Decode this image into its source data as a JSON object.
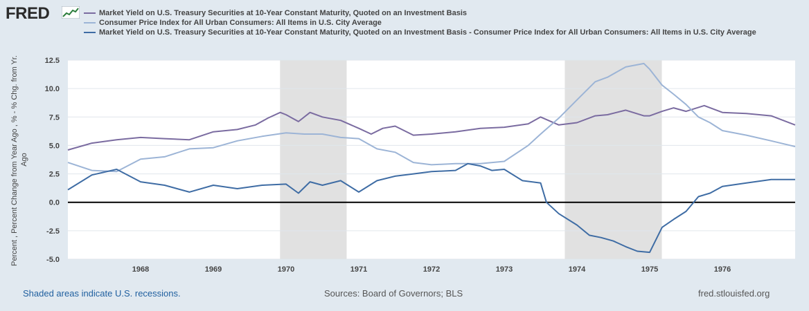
{
  "header": {
    "logo_text": "FRED",
    "logo_icon": "fred-mini-chart-icon"
  },
  "footer": {
    "recession_note": "Shaded areas indicate U.S. recessions.",
    "sources": "Sources: Board of Governors; BLS",
    "site": "fred.stlouisfed.org"
  },
  "colors": {
    "background": "#e1e9f0",
    "plot_bg": "#ffffff",
    "gridline": "#e0e6ec",
    "recession": "#e1e1e1",
    "zero_line": "#000000",
    "series1": "#7a6ba0",
    "series2": "#9cb4d6",
    "series3": "#3e6ca4"
  },
  "chart_data": {
    "type": "line",
    "title": "",
    "xlabel": "",
    "ylabel": "Percent , Percent Change from Year Ago , % - % Chg. from Yr. Ago",
    "x_range": [
      1967.0,
      1977.0
    ],
    "ylim": [
      -5.0,
      12.5
    ],
    "y_ticks": [
      -5.0,
      -2.5,
      0.0,
      2.5,
      5.0,
      7.5,
      10.0,
      12.5
    ],
    "y_tick_labels": [
      "-5.0",
      "-2.5",
      "0.0",
      "2.5",
      "5.0",
      "7.5",
      "10.0",
      "12.5"
    ],
    "x_tick_labels": [
      "1968",
      "1969",
      "1970",
      "1971",
      "1972",
      "1973",
      "1974",
      "1975",
      "1976"
    ],
    "x_tick_values": [
      1968,
      1969,
      1970,
      1971,
      1972,
      1973,
      1974,
      1975,
      1976
    ],
    "zero_line": 0.0,
    "recessions": [
      [
        1969.917,
        1970.833
      ],
      [
        1973.833,
        1975.167
      ]
    ],
    "series": [
      {
        "name": "Market Yield on U.S. Treasury Securities at 10-Year Constant Maturity, Quoted on an Investment Basis",
        "color": "#7a6ba0",
        "x": [
          1967.0,
          1967.33,
          1967.67,
          1968.0,
          1968.33,
          1968.67,
          1969.0,
          1969.33,
          1969.58,
          1969.75,
          1969.92,
          1970.0,
          1970.17,
          1970.33,
          1970.5,
          1970.75,
          1971.0,
          1971.17,
          1971.33,
          1971.5,
          1971.75,
          1972.0,
          1972.33,
          1972.67,
          1973.0,
          1973.33,
          1973.5,
          1973.75,
          1974.0,
          1974.25,
          1974.42,
          1974.67,
          1974.92,
          1975.0,
          1975.17,
          1975.33,
          1975.5,
          1975.75,
          1976.0,
          1976.33,
          1976.67,
          1977.0
        ],
        "values": [
          4.6,
          5.2,
          5.5,
          5.7,
          5.6,
          5.5,
          6.2,
          6.4,
          6.8,
          7.4,
          7.9,
          7.7,
          7.1,
          7.9,
          7.5,
          7.2,
          6.5,
          6.0,
          6.5,
          6.7,
          5.9,
          6.0,
          6.2,
          6.5,
          6.6,
          6.9,
          7.5,
          6.8,
          7.0,
          7.6,
          7.7,
          8.1,
          7.6,
          7.6,
          8.0,
          8.3,
          8.0,
          8.5,
          7.9,
          7.8,
          7.6,
          6.8
        ]
      },
      {
        "name": "Consumer Price Index for All Urban Consumers: All Items in U.S. City Average",
        "color": "#9cb4d6",
        "x": [
          1967.0,
          1967.33,
          1967.67,
          1968.0,
          1968.33,
          1968.67,
          1969.0,
          1969.33,
          1969.67,
          1970.0,
          1970.25,
          1970.5,
          1970.75,
          1971.0,
          1971.25,
          1971.5,
          1971.75,
          1972.0,
          1972.33,
          1972.67,
          1973.0,
          1973.33,
          1973.5,
          1973.75,
          1974.0,
          1974.25,
          1974.42,
          1974.67,
          1974.92,
          1975.0,
          1975.17,
          1975.33,
          1975.5,
          1975.67,
          1975.83,
          1976.0,
          1976.33,
          1976.67,
          1977.0
        ],
        "values": [
          3.5,
          2.8,
          2.7,
          3.8,
          4.0,
          4.7,
          4.8,
          5.4,
          5.8,
          6.1,
          6.0,
          6.0,
          5.7,
          5.6,
          4.7,
          4.4,
          3.5,
          3.3,
          3.4,
          3.4,
          3.6,
          5.0,
          6.0,
          7.4,
          9.0,
          10.6,
          11.0,
          11.9,
          12.2,
          11.7,
          10.3,
          9.5,
          8.6,
          7.5,
          7.0,
          6.3,
          5.9,
          5.4,
          4.9
        ]
      },
      {
        "name": "Market Yield on U.S. Treasury Securities at 10-Year Constant Maturity, Quoted on an Investment Basis - Consumer Price Index for All Urban Consumers: All Items in U.S. City Average",
        "color": "#3e6ca4",
        "x": [
          1967.0,
          1967.33,
          1967.67,
          1968.0,
          1968.33,
          1968.67,
          1969.0,
          1969.33,
          1969.67,
          1970.0,
          1970.17,
          1970.33,
          1970.5,
          1970.75,
          1971.0,
          1971.25,
          1971.5,
          1971.75,
          1972.0,
          1972.33,
          1972.5,
          1972.67,
          1972.83,
          1973.0,
          1973.25,
          1973.5,
          1973.58,
          1973.75,
          1974.0,
          1974.17,
          1974.33,
          1974.5,
          1974.67,
          1974.83,
          1975.0,
          1975.17,
          1975.33,
          1975.5,
          1975.67,
          1975.83,
          1976.0,
          1976.33,
          1976.67,
          1977.0
        ],
        "values": [
          1.1,
          2.4,
          2.9,
          1.8,
          1.5,
          0.9,
          1.5,
          1.2,
          1.5,
          1.6,
          0.8,
          1.8,
          1.5,
          1.9,
          0.9,
          1.9,
          2.3,
          2.5,
          2.7,
          2.8,
          3.4,
          3.2,
          2.8,
          2.9,
          1.9,
          1.7,
          0.0,
          -1.0,
          -2.0,
          -2.9,
          -3.1,
          -3.4,
          -3.9,
          -4.3,
          -4.4,
          -2.2,
          -1.5,
          -0.8,
          0.5,
          0.8,
          1.4,
          1.7,
          2.0,
          2.0
        ]
      }
    ]
  }
}
